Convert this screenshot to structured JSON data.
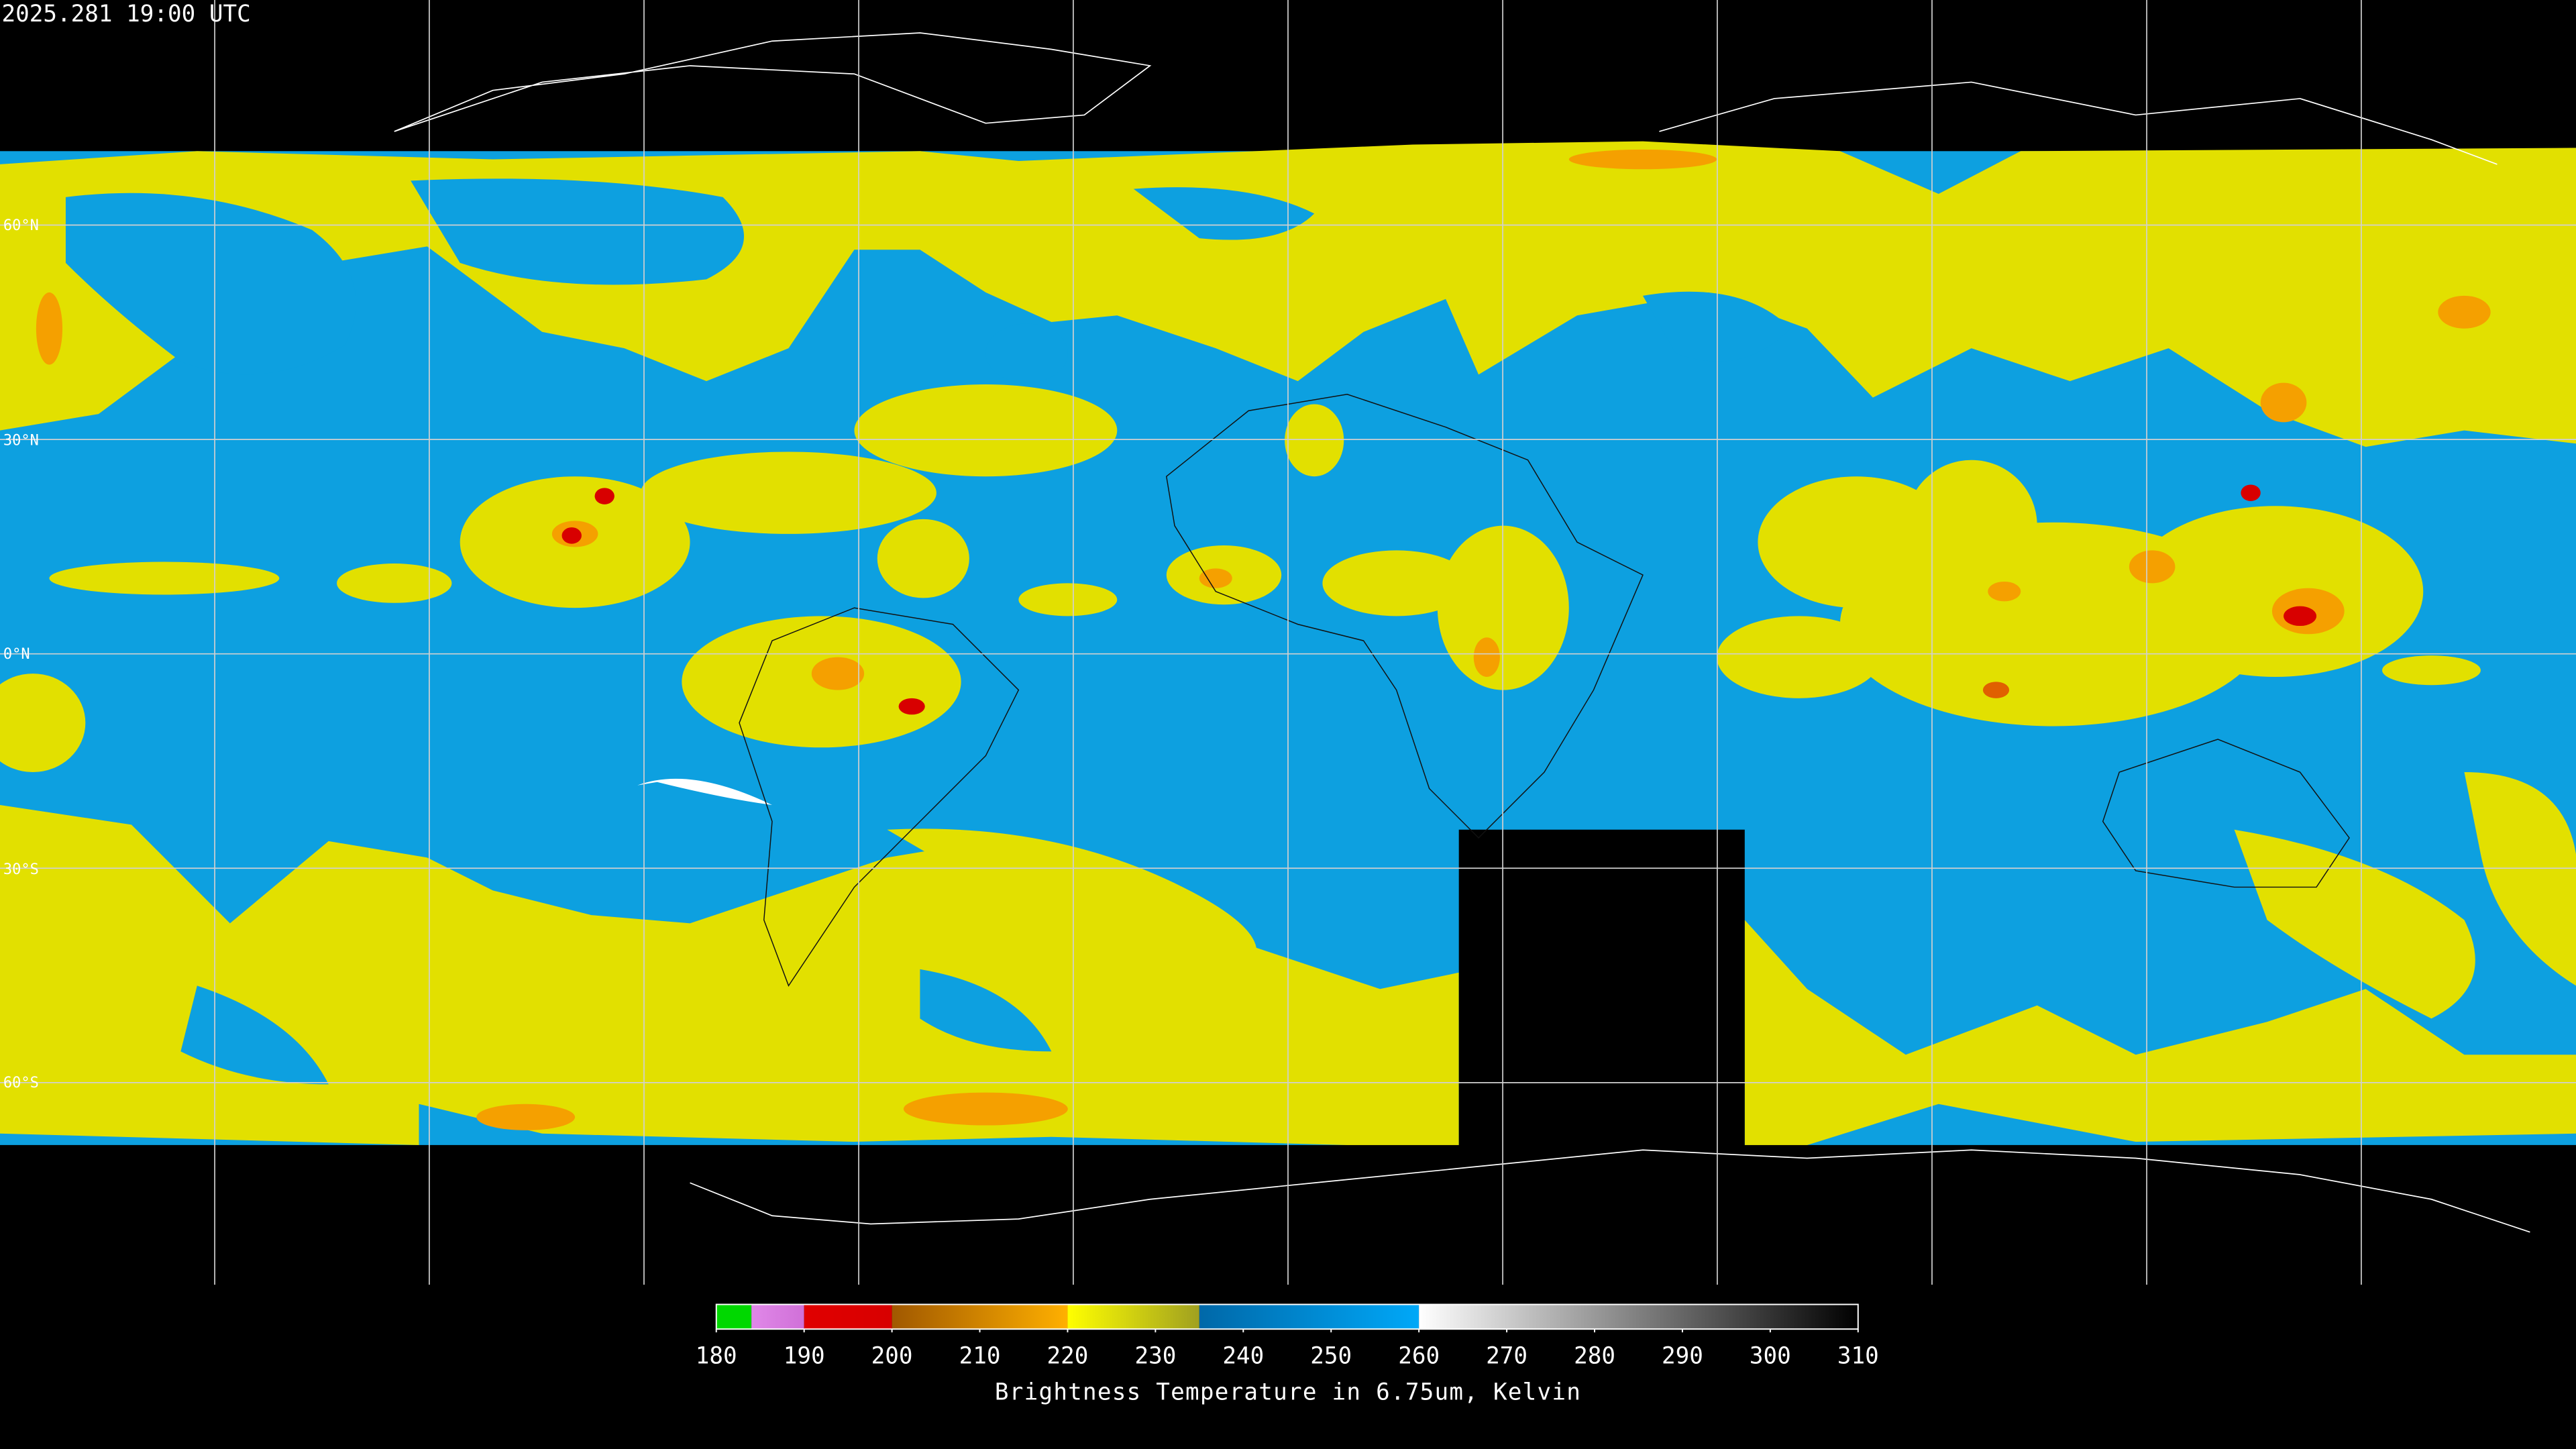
{
  "header": {
    "timestamp": "2025.281 19:00 UTC"
  },
  "map": {
    "latitude_labels": [
      "60°N",
      "30°N",
      "0°N",
      "30°S",
      "60°S"
    ]
  },
  "colorbar": {
    "title": "Brightness Temperature in 6.75um, Kelvin",
    "range": [
      180,
      310
    ],
    "ticks": [
      180,
      190,
      200,
      210,
      220,
      230,
      240,
      250,
      260,
      270,
      280,
      290,
      300,
      310
    ],
    "segments": [
      {
        "from": 180,
        "to": 184,
        "colors": [
          "#00d800",
          "#00d800"
        ]
      },
      {
        "from": 184,
        "to": 190,
        "colors": [
          "#e088e8",
          "#d070d8"
        ]
      },
      {
        "from": 190,
        "to": 200,
        "colors": [
          "#e00000",
          "#d80000"
        ]
      },
      {
        "from": 200,
        "to": 220,
        "colors": [
          "#a05800",
          "#ffb000"
        ]
      },
      {
        "from": 220,
        "to": 235,
        "colors": [
          "#ffff00",
          "#a0a020"
        ]
      },
      {
        "from": 235,
        "to": 260,
        "colors": [
          "#0068a8",
          "#00a8f8"
        ]
      },
      {
        "from": 260,
        "to": 310,
        "colors": [
          "#ffffff",
          "#000000"
        ]
      }
    ]
  }
}
